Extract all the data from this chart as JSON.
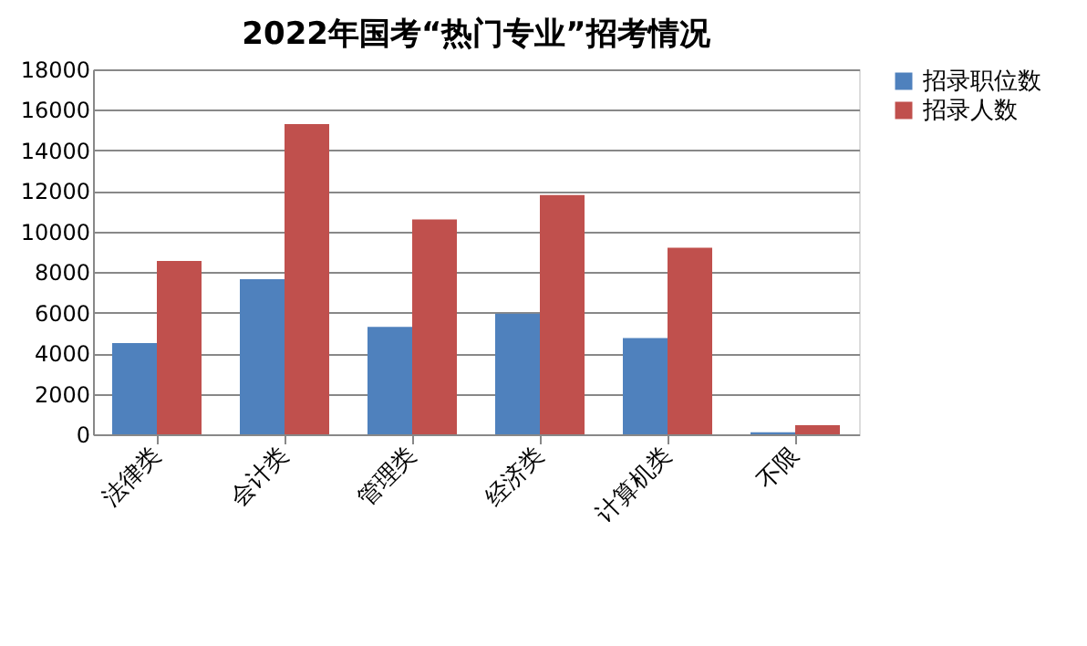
{
  "chart_data": {
    "type": "bar",
    "title": "2022年国考“热门专业”招考情况",
    "categories": [
      "法律类",
      "会计类",
      "管理类",
      "经济类",
      "计算机类",
      "不限"
    ],
    "series": [
      {
        "name": "招录职位数",
        "color": "#4f81bd",
        "values": [
          4500,
          7650,
          5300,
          5950,
          4750,
          100
        ]
      },
      {
        "name": "招录人数",
        "color": "#c0504d",
        "values": [
          8550,
          15300,
          10600,
          11800,
          9200,
          450
        ]
      }
    ],
    "ylim": [
      0,
      18000
    ],
    "yticks": [
      0,
      2000,
      4000,
      6000,
      8000,
      10000,
      12000,
      14000,
      16000,
      18000
    ],
    "grid": "y",
    "legend": "right"
  }
}
